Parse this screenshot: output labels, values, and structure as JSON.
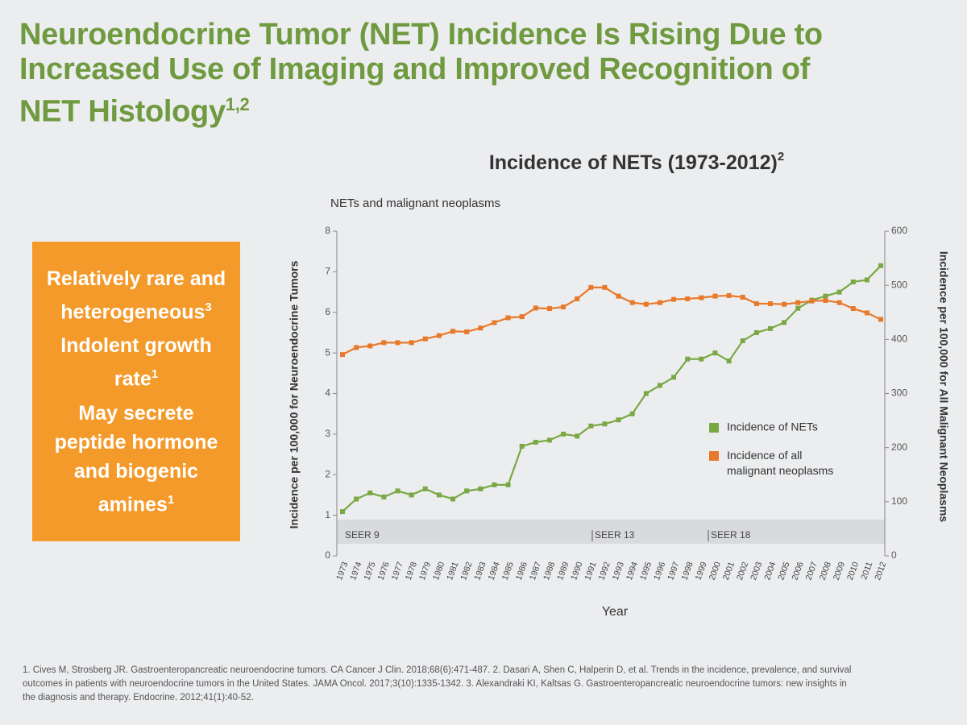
{
  "header": {
    "title": "Neuroendocrine Tumor (NET) Incidence Is Rising Due to Increased Use of Imaging and Improved Recognition of NET Histology",
    "title_sup": "1,2"
  },
  "callout": {
    "items": [
      {
        "text": "Relatively rare and heterogeneous",
        "sup": "3"
      },
      {
        "text": "Indolent growth rate",
        "sup": "1"
      },
      {
        "text": "May secrete peptide hormone and biogenic amines",
        "sup": "1"
      }
    ]
  },
  "chart_data": {
    "type": "line",
    "title": "Incidence of NETs (1973-2012)",
    "title_sup": "2",
    "subtitle": "NETs and malignant neoplasms",
    "xlabel": "Year",
    "ylabel": "Incidence per 100,000 for Neuroendocrine Tumors",
    "y2label": "Incidence per 100,000 for All Malignant Neoplasms",
    "categories": [
      "1973",
      "1974",
      "1975",
      "1976",
      "1977",
      "1978",
      "1979",
      "1980",
      "1981",
      "1982",
      "1983",
      "1984",
      "1985",
      "1986",
      "1987",
      "1988",
      "1989",
      "1990",
      "1991",
      "1992",
      "1993",
      "1994",
      "1995",
      "1996",
      "1997",
      "1998",
      "1999",
      "2000",
      "2001",
      "2002",
      "2003",
      "2004",
      "2005",
      "2006",
      "2007",
      "2008",
      "2009",
      "2010",
      "2011",
      "2012"
    ],
    "series": [
      {
        "name": "Incidence of NETs",
        "color": "#7aa844",
        "axis": "y",
        "values": [
          1.09,
          1.4,
          1.55,
          1.45,
          1.6,
          1.5,
          1.65,
          1.5,
          1.4,
          1.6,
          1.65,
          1.75,
          1.75,
          2.7,
          2.8,
          2.85,
          3.0,
          2.95,
          3.2,
          3.25,
          3.35,
          3.5,
          4.0,
          4.2,
          4.4,
          4.85,
          4.85,
          5.0,
          4.8,
          5.3,
          5.5,
          5.6,
          5.75,
          6.1,
          6.3,
          6.4,
          6.5,
          6.75,
          6.8,
          7.15
        ]
      },
      {
        "name": "Incidence of all malignant neoplasms",
        "color": "#e8792a",
        "axis": "y2",
        "values": [
          372,
          385,
          388,
          394,
          394,
          394,
          401,
          407,
          415,
          414,
          421,
          431,
          440,
          442,
          458,
          457,
          460,
          475,
          496,
          496,
          480,
          468,
          465,
          468,
          474,
          475,
          477,
          480,
          481,
          478,
          466,
          466,
          465,
          468,
          471,
          472,
          468,
          457,
          449,
          437
        ]
      }
    ],
    "annotations": [
      "SEER 9",
      "SEER 13",
      "SEER 18"
    ],
    "ylim": [
      0,
      8
    ],
    "yticks": [
      0,
      1,
      2,
      3,
      4,
      5,
      6,
      7,
      8
    ],
    "y2lim": [
      0,
      600
    ],
    "y2ticks": [
      0,
      100,
      200,
      300,
      400,
      500,
      600
    ]
  },
  "footnote": "1. Cives M, Strosberg JR. Gastroenteropancreatic neuroendocrine tumors. CA Cancer J Clin. 2018;68(6):471-487. 2. Dasari A, Shen C, Halperin D, et al. Trends in the incidence, prevalence, and survival outcomes in patients with neuroendocrine tumors in the United States. JAMA Oncol. 2017;3(10):1335-1342. 3. Alexandraki KI, Kaltsas G. Gastroenteropancreatic neuroendocrine tumors: new insights in the diagnosis and therapy. Endocrine. 2012;41(1):40-52."
}
